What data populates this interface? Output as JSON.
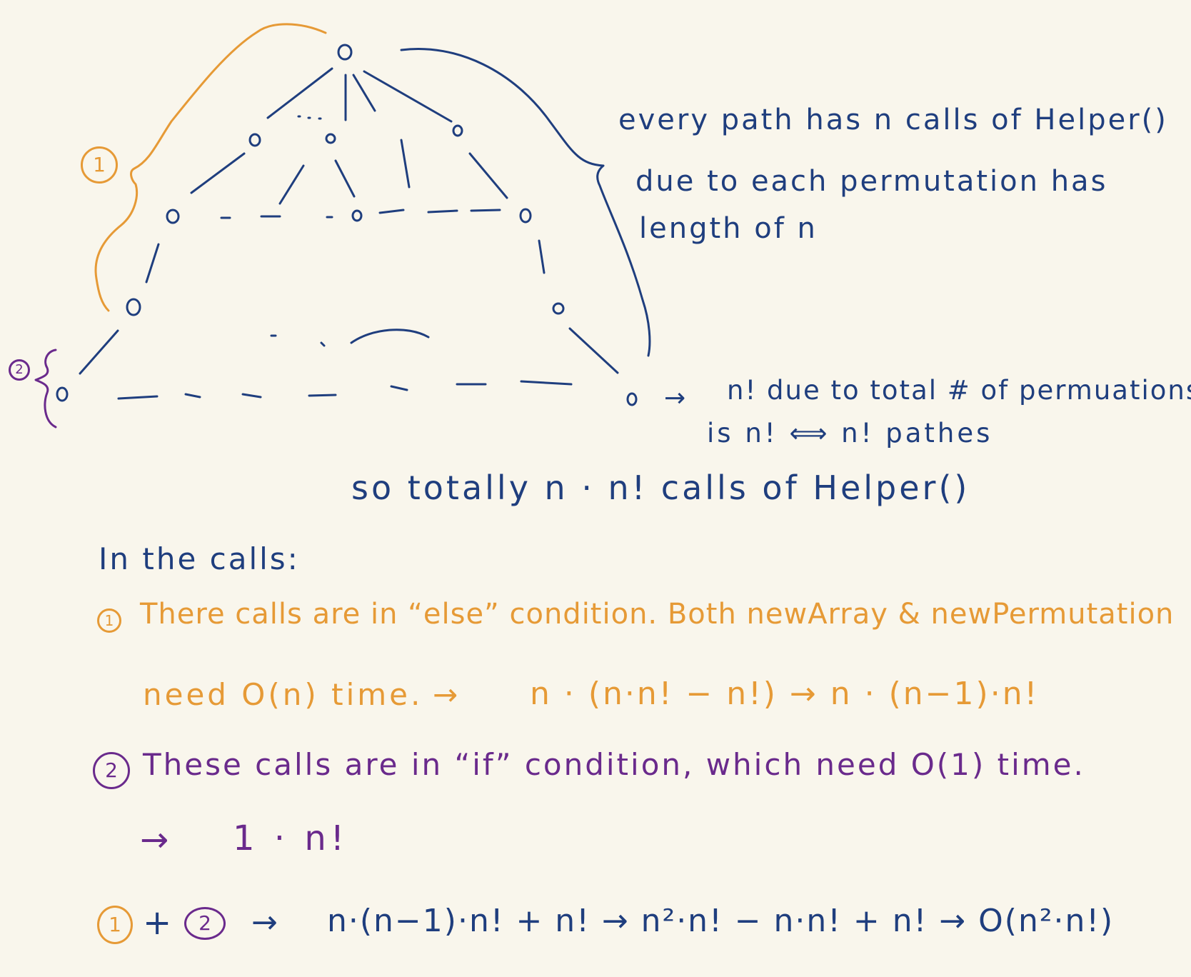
{
  "colors": {
    "background": "#f9f6ec",
    "blue": "#1f3e7e",
    "orange": "#e69a36",
    "purple": "#6a2a8c"
  },
  "markers": {
    "one": "1",
    "two": "2"
  },
  "tree": {
    "node_glyph": "o",
    "ellipsis": "...",
    "path_note": [
      "every path has n calls of Helper()",
      "due to each permutation has",
      "length of n"
    ],
    "leaf_note": [
      "n! due to total # of permuations",
      "is n! ⟺ n! pathes"
    ]
  },
  "summary": "so totally n · n! calls of Helper()",
  "calls_heading": "In the calls:",
  "item1": {
    "line1": "There calls are in “else” condition. Both newArray & newPermutation",
    "line2_prefix": "need O(n) time.",
    "arrow": "→",
    "line2_formula": "n · (n·n! − n!) → n · (n−1)·n!"
  },
  "item2": {
    "line1": "These calls are in “if” condition, which need O(1) time.",
    "arrow": "→",
    "line2": "1 · n!"
  },
  "final": {
    "plus": "+",
    "arrow": "→",
    "formula": "n·(n−1)·n! + n! → n²·n! − n·n! + n! → O(n²·n!)"
  }
}
